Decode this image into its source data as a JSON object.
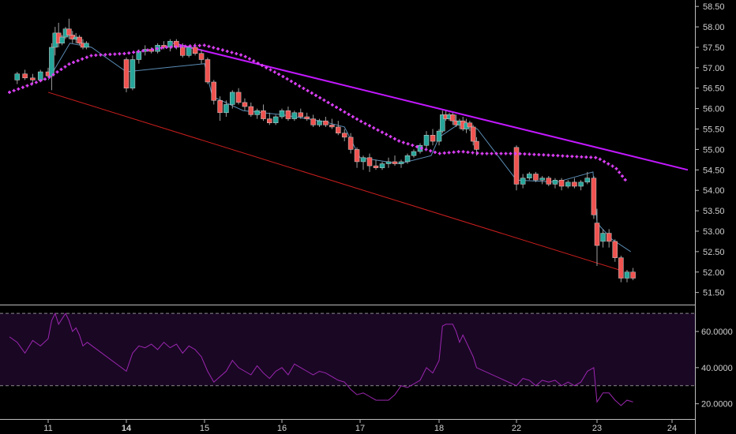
{
  "chart_data": [
    {
      "type": "candlestick",
      "title": "",
      "ylim": [
        51.3,
        58.6
      ],
      "y_ticks": [
        "58.50",
        "58.00",
        "57.50",
        "57.00",
        "56.50",
        "56.00",
        "55.50",
        "55.00",
        "54.50",
        "54.00",
        "53.50",
        "53.00",
        "52.50",
        "52.00",
        "51.50"
      ],
      "x_ticks": [
        {
          "label": "11",
          "bold": false
        },
        {
          "label": "14",
          "bold": true
        },
        {
          "label": "15",
          "bold": false
        },
        {
          "label": "16",
          "bold": false
        },
        {
          "label": "17",
          "bold": false
        },
        {
          "label": "18",
          "bold": false
        },
        {
          "label": "22",
          "bold": false
        },
        {
          "label": "23",
          "bold": false
        },
        {
          "label": "24",
          "bold": false
        }
      ],
      "x_domain": [
        10.5,
        24.2
      ],
      "colors": {
        "up": "#26a69a",
        "down": "#ef5350",
        "sma": "#e040fb",
        "trend_upper": "#c218ff",
        "trend_lower": "#cc1e1e",
        "thin_ma": "#5a8cb4"
      },
      "candles": [
        [
          10.6,
          56.7,
          56.9,
          56.6,
          56.85
        ],
        [
          10.7,
          56.85,
          56.95,
          56.7,
          56.75
        ],
        [
          10.8,
          56.75,
          56.85,
          56.6,
          56.7
        ],
        [
          10.9,
          56.7,
          56.95,
          56.65,
          56.9
        ],
        [
          11.0,
          56.9,
          57.0,
          56.75,
          56.8
        ],
        [
          11.08,
          56.8,
          57.6,
          56.45,
          57.5
        ],
        [
          11.16,
          57.5,
          58.0,
          57.3,
          57.85
        ],
        [
          11.24,
          57.85,
          58.1,
          57.5,
          57.6
        ],
        [
          11.32,
          57.6,
          57.8,
          57.55,
          57.75
        ],
        [
          11.4,
          57.75,
          58.0,
          57.7,
          57.95
        ],
        [
          11.48,
          57.95,
          58.2,
          57.7,
          57.8
        ],
        [
          11.56,
          57.8,
          57.9,
          57.6,
          57.7
        ],
        [
          11.64,
          57.7,
          57.85,
          57.6,
          57.75
        ],
        [
          11.72,
          57.75,
          57.8,
          57.55,
          57.6
        ],
        [
          11.8,
          57.6,
          57.7,
          57.45,
          57.5
        ],
        [
          11.88,
          57.5,
          57.65,
          57.45,
          57.6
        ],
        [
          14.0,
          57.2,
          57.25,
          56.4,
          56.5
        ],
        [
          14.08,
          56.5,
          57.3,
          56.45,
          57.2
        ],
        [
          14.16,
          57.2,
          57.45,
          57.1,
          57.4
        ],
        [
          14.24,
          57.4,
          57.55,
          57.3,
          57.45
        ],
        [
          14.32,
          57.45,
          57.5,
          57.35,
          57.4
        ],
        [
          14.4,
          57.4,
          57.6,
          57.35,
          57.55
        ],
        [
          14.48,
          57.55,
          57.65,
          57.45,
          57.5
        ],
        [
          14.56,
          57.5,
          57.7,
          57.4,
          57.65
        ],
        [
          14.64,
          57.65,
          57.7,
          57.45,
          57.5
        ],
        [
          14.72,
          57.5,
          57.6,
          57.25,
          57.3
        ],
        [
          14.8,
          57.3,
          57.55,
          57.25,
          57.5
        ],
        [
          14.88,
          57.5,
          57.6,
          57.3,
          57.35
        ],
        [
          14.96,
          57.35,
          57.45,
          57.1,
          57.2
        ],
        [
          15.04,
          57.2,
          57.25,
          56.6,
          56.65
        ],
        [
          15.12,
          56.65,
          56.7,
          56.1,
          56.2
        ],
        [
          15.2,
          56.2,
          56.3,
          55.7,
          55.9
        ],
        [
          15.28,
          55.9,
          56.2,
          55.8,
          56.1
        ],
        [
          15.36,
          56.1,
          56.45,
          56.0,
          56.4
        ],
        [
          15.44,
          56.4,
          56.5,
          56.1,
          56.15
        ],
        [
          15.52,
          56.15,
          56.25,
          55.95,
          56.05
        ],
        [
          15.6,
          56.05,
          56.15,
          55.8,
          55.85
        ],
        [
          15.68,
          55.85,
          56.0,
          55.75,
          55.95
        ],
        [
          15.76,
          55.95,
          56.1,
          55.7,
          55.75
        ],
        [
          15.84,
          55.75,
          55.9,
          55.6,
          55.65
        ],
        [
          15.92,
          55.65,
          55.85,
          55.6,
          55.8
        ],
        [
          16.0,
          55.8,
          56.0,
          55.75,
          55.95
        ],
        [
          16.08,
          55.95,
          56.05,
          55.7,
          55.75
        ],
        [
          16.16,
          55.75,
          55.95,
          55.7,
          55.9
        ],
        [
          16.24,
          55.9,
          56.0,
          55.75,
          55.8
        ],
        [
          16.32,
          55.8,
          55.9,
          55.7,
          55.75
        ],
        [
          16.4,
          55.75,
          55.85,
          55.55,
          55.6
        ],
        [
          16.48,
          55.6,
          55.75,
          55.55,
          55.7
        ],
        [
          16.56,
          55.7,
          55.8,
          55.55,
          55.6
        ],
        [
          16.64,
          55.6,
          55.75,
          55.5,
          55.55
        ],
        [
          16.72,
          55.55,
          55.7,
          55.35,
          55.4
        ],
        [
          16.8,
          55.4,
          55.5,
          55.2,
          55.3
        ],
        [
          16.88,
          55.3,
          55.4,
          54.9,
          55.0
        ],
        [
          16.96,
          55.0,
          55.05,
          54.55,
          54.7
        ],
        [
          17.04,
          54.7,
          54.85,
          54.5,
          54.8
        ],
        [
          17.12,
          54.8,
          54.9,
          54.45,
          54.6
        ],
        [
          17.2,
          54.6,
          54.75,
          54.5,
          54.55
        ],
        [
          17.28,
          54.55,
          54.7,
          54.5,
          54.65
        ],
        [
          17.36,
          54.65,
          54.8,
          54.55,
          54.7
        ],
        [
          17.44,
          54.7,
          54.85,
          54.6,
          54.65
        ],
        [
          17.52,
          54.65,
          54.75,
          54.55,
          54.7
        ],
        [
          17.6,
          54.7,
          54.9,
          54.65,
          54.85
        ],
        [
          17.68,
          54.85,
          55.0,
          54.8,
          54.95
        ],
        [
          17.76,
          54.95,
          55.15,
          54.9,
          55.1
        ],
        [
          17.84,
          55.1,
          55.45,
          55.0,
          55.35
        ],
        [
          17.92,
          55.35,
          55.5,
          55.1,
          55.2
        ],
        [
          18.0,
          55.2,
          55.5,
          55.1,
          55.45
        ],
        [
          18.08,
          55.45,
          55.95,
          55.4,
          55.85
        ],
        [
          18.16,
          55.85,
          55.95,
          55.7,
          55.75
        ],
        [
          18.24,
          55.75,
          55.9,
          55.7,
          55.85
        ],
        [
          18.32,
          55.85,
          55.9,
          55.6,
          55.7
        ],
        [
          18.4,
          55.7,
          55.85,
          55.55,
          55.6
        ],
        [
          18.48,
          55.6,
          55.75,
          55.5,
          55.7
        ],
        [
          18.56,
          55.7,
          55.8,
          55.45,
          55.5
        ],
        [
          18.64,
          55.5,
          55.75,
          55.4,
          55.65
        ],
        [
          18.72,
          55.65,
          55.7,
          55.45,
          55.55
        ],
        [
          18.8,
          55.55,
          55.6,
          55.1,
          55.2
        ],
        [
          18.88,
          55.2,
          55.3,
          54.85,
          55.0
        ],
        [
          22.0,
          55.05,
          55.1,
          54.0,
          54.15
        ],
        [
          22.08,
          54.15,
          54.4,
          54.05,
          54.3
        ],
        [
          22.16,
          54.3,
          54.45,
          54.25,
          54.4
        ],
        [
          22.24,
          54.4,
          54.45,
          54.2,
          54.25
        ],
        [
          22.32,
          54.25,
          54.35,
          54.15,
          54.3
        ],
        [
          22.4,
          54.3,
          54.35,
          54.1,
          54.15
        ],
        [
          22.48,
          54.15,
          54.3,
          54.05,
          54.25
        ],
        [
          22.56,
          54.25,
          54.3,
          54.0,
          54.1
        ],
        [
          22.64,
          54.1,
          54.25,
          54.05,
          54.2
        ],
        [
          22.72,
          54.2,
          54.3,
          54.05,
          54.1
        ],
        [
          22.8,
          54.1,
          54.25,
          54.0,
          54.2
        ],
        [
          22.88,
          54.2,
          54.45,
          54.15,
          54.3
        ],
        [
          22.96,
          54.3,
          54.35,
          53.3,
          53.4
        ],
        [
          23.0,
          53.2,
          53.55,
          52.15,
          52.65
        ],
        [
          23.08,
          52.75,
          53.05,
          52.6,
          52.95
        ],
        [
          23.16,
          52.95,
          53.05,
          52.6,
          52.75
        ],
        [
          23.24,
          52.75,
          52.8,
          52.25,
          52.35
        ],
        [
          23.32,
          52.35,
          52.4,
          51.75,
          51.85
        ],
        [
          23.4,
          51.85,
          52.05,
          51.75,
          52.0
        ],
        [
          23.48,
          52.0,
          52.1,
          51.8,
          51.85
        ]
      ],
      "sma_points": [
        [
          10.5,
          56.4
        ],
        [
          11.0,
          56.75
        ],
        [
          11.5,
          57.1
        ],
        [
          12.0,
          57.3
        ],
        [
          14.0,
          57.35
        ],
        [
          14.5,
          57.5
        ],
        [
          15.0,
          57.55
        ],
        [
          15.5,
          57.3
        ],
        [
          16.0,
          56.8
        ],
        [
          16.5,
          56.25
        ],
        [
          17.0,
          55.7
        ],
        [
          17.5,
          55.2
        ],
        [
          18.0,
          54.9
        ],
        [
          18.5,
          54.95
        ],
        [
          19.0,
          54.9
        ],
        [
          22.0,
          54.9
        ],
        [
          22.5,
          54.85
        ],
        [
          23.0,
          54.8
        ],
        [
          23.25,
          54.55
        ],
        [
          23.4,
          54.2
        ]
      ],
      "upper_trend": [
        [
          14.6,
          57.6
        ],
        [
          24.2,
          54.5
        ]
      ],
      "lower_trend": [
        [
          11.0,
          56.4
        ],
        [
          23.3,
          52.05
        ]
      ],
      "thin_ma": [
        [
          11.0,
          56.7
        ],
        [
          11.5,
          57.6
        ],
        [
          12.0,
          57.5
        ],
        [
          14.0,
          56.9
        ],
        [
          14.5,
          57.0
        ],
        [
          15.0,
          57.1
        ],
        [
          15.1,
          56.3
        ],
        [
          15.5,
          55.95
        ],
        [
          16.0,
          55.85
        ],
        [
          16.5,
          55.7
        ],
        [
          16.8,
          55.55
        ],
        [
          17.0,
          54.8
        ],
        [
          17.5,
          54.65
        ],
        [
          17.9,
          54.85
        ],
        [
          18.0,
          55.3
        ],
        [
          18.5,
          55.65
        ],
        [
          18.9,
          55.5
        ],
        [
          22.0,
          54.25
        ],
        [
          22.5,
          54.2
        ],
        [
          22.95,
          54.45
        ],
        [
          23.0,
          53.2
        ],
        [
          23.2,
          52.8
        ],
        [
          23.45,
          52.5
        ]
      ]
    },
    {
      "type": "line",
      "title": "",
      "name": "",
      "ylim": [
        12,
        74
      ],
      "y_ticks": [
        "60.0000",
        "40.0000",
        "20.0000"
      ],
      "bands": [
        30,
        70
      ],
      "color": "#9c27b0",
      "band_fill": "#1a0724",
      "points": [
        [
          10.5,
          57
        ],
        [
          10.6,
          54
        ],
        [
          10.7,
          48
        ],
        [
          10.8,
          55
        ],
        [
          10.9,
          52
        ],
        [
          11.0,
          56
        ],
        [
          11.08,
          66
        ],
        [
          11.16,
          70
        ],
        [
          11.24,
          64
        ],
        [
          11.32,
          67
        ],
        [
          11.4,
          70
        ],
        [
          11.48,
          66
        ],
        [
          11.56,
          60
        ],
        [
          11.64,
          62
        ],
        [
          11.72,
          58
        ],
        [
          11.8,
          52
        ],
        [
          11.9,
          54
        ],
        [
          14.0,
          38
        ],
        [
          14.08,
          48
        ],
        [
          14.16,
          52
        ],
        [
          14.24,
          51
        ],
        [
          14.32,
          53
        ],
        [
          14.4,
          50
        ],
        [
          14.48,
          54
        ],
        [
          14.56,
          51
        ],
        [
          14.64,
          53
        ],
        [
          14.72,
          48
        ],
        [
          14.8,
          52
        ],
        [
          14.88,
          50
        ],
        [
          14.96,
          46
        ],
        [
          15.04,
          38
        ],
        [
          15.12,
          32
        ],
        [
          15.2,
          35
        ],
        [
          15.28,
          38
        ],
        [
          15.36,
          44
        ],
        [
          15.44,
          40
        ],
        [
          15.52,
          38
        ],
        [
          15.6,
          36
        ],
        [
          15.68,
          41
        ],
        [
          15.76,
          37
        ],
        [
          15.84,
          34
        ],
        [
          15.92,
          38
        ],
        [
          16.0,
          40
        ],
        [
          16.08,
          36
        ],
        [
          16.16,
          42
        ],
        [
          16.24,
          40
        ],
        [
          16.32,
          38
        ],
        [
          16.4,
          36
        ],
        [
          16.48,
          38
        ],
        [
          16.56,
          37
        ],
        [
          16.64,
          35
        ],
        [
          16.72,
          33
        ],
        [
          16.8,
          32
        ],
        [
          16.88,
          28
        ],
        [
          16.96,
          25
        ],
        [
          17.04,
          26
        ],
        [
          17.12,
          24
        ],
        [
          17.2,
          22
        ],
        [
          17.28,
          22
        ],
        [
          17.36,
          22
        ],
        [
          17.44,
          25
        ],
        [
          17.52,
          30
        ],
        [
          17.6,
          29
        ],
        [
          17.68,
          31
        ],
        [
          17.76,
          33
        ],
        [
          17.84,
          40
        ],
        [
          17.92,
          37
        ],
        [
          18.0,
          44
        ],
        [
          18.08,
          63
        ],
        [
          18.16,
          64
        ],
        [
          18.24,
          64
        ],
        [
          18.32,
          64
        ],
        [
          18.4,
          60
        ],
        [
          18.48,
          54
        ],
        [
          18.56,
          58
        ],
        [
          18.64,
          54
        ],
        [
          18.72,
          50
        ],
        [
          18.8,
          46
        ],
        [
          18.88,
          40
        ],
        [
          22.0,
          30
        ],
        [
          22.08,
          34
        ],
        [
          22.16,
          33
        ],
        [
          22.24,
          30
        ],
        [
          22.32,
          33
        ],
        [
          22.4,
          32
        ],
        [
          22.48,
          33
        ],
        [
          22.56,
          30
        ],
        [
          22.64,
          32
        ],
        [
          22.72,
          30
        ],
        [
          22.8,
          32
        ],
        [
          22.88,
          38
        ],
        [
          22.96,
          40
        ],
        [
          23.0,
          21
        ],
        [
          23.08,
          26
        ],
        [
          23.16,
          26
        ],
        [
          23.24,
          22
        ],
        [
          23.32,
          19
        ],
        [
          23.4,
          22
        ],
        [
          23.48,
          21
        ]
      ]
    }
  ]
}
